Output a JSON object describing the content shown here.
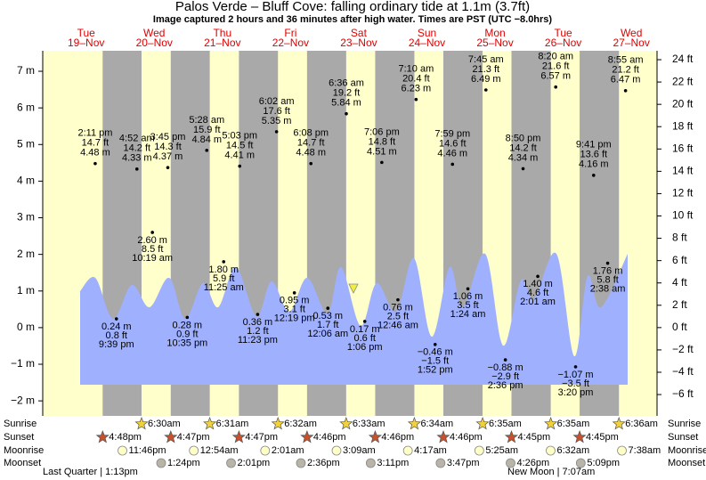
{
  "chart_data": {
    "type": "tide",
    "title": "Palos Verde – Bluff Cove: falling  ordinary tide at 1.1m (3.7ft)",
    "subtitle": "Image captured 2 hours and 36 minutes after high water. Times are PST (UTC −8.0hrs)",
    "ylim": [
      -2.41,
      7.56
    ],
    "yticks": [
      {
        "value": 7,
        "label": "7 m"
      },
      {
        "value": 6,
        "label": "6 m"
      },
      {
        "value": 5,
        "label": "5 m"
      },
      {
        "value": 4,
        "label": "4 m"
      },
      {
        "value": 3,
        "label": "3 m"
      },
      {
        "value": 2,
        "label": "2 m"
      },
      {
        "value": 1,
        "label": "1 m"
      },
      {
        "value": 0,
        "label": "0 m"
      },
      {
        "value": -1,
        "label": "−1 m"
      },
      {
        "value": -2,
        "label": "−2 m"
      }
    ],
    "y2lim": [
      -7.91,
      24.8
    ],
    "y2ticks": [
      {
        "value": 24,
        "label": "24 ft"
      },
      {
        "value": 22,
        "label": "22 ft"
      },
      {
        "value": 20,
        "label": "20 ft"
      },
      {
        "value": 18,
        "label": "18 ft"
      },
      {
        "value": 16,
        "label": "16 ft"
      },
      {
        "value": 14,
        "label": "14 ft"
      },
      {
        "value": 12,
        "label": "12 ft"
      },
      {
        "value": 10,
        "label": "10 ft"
      },
      {
        "value": 8,
        "label": "8 ft"
      },
      {
        "value": 6,
        "label": "6 ft"
      },
      {
        "value": 4,
        "label": "4 ft"
      },
      {
        "value": 2,
        "label": "2 ft"
      },
      {
        "value": 0,
        "label": "0 ft"
      },
      {
        "value": -2,
        "label": "−2 ft"
      },
      {
        "value": -4,
        "label": "−4 ft"
      },
      {
        "value": -6,
        "label": "−6 ft"
      }
    ],
    "rows": [
      "Sunrise",
      "Sunset",
      "Moonrise",
      "Moonset"
    ],
    "moon_phases": [
      "Last Quarter | 1:13pm",
      "New Moon | 7:07am"
    ],
    "days": [
      {
        "weekday": "Tue",
        "date": "19–Nov",
        "sunset": "4:48pm",
        "moonrise": "11:46pm",
        "tides": [
          {
            "time": "2:11 pm",
            "value": 4.48,
            "value_label": "4.48 m",
            "ft_label": "14.7 ft"
          },
          {
            "time": "9:39 pm",
            "value": 0.24,
            "value_label": "0.24 m",
            "ft_label": "0.8 ft"
          }
        ]
      },
      {
        "weekday": "Wed",
        "date": "20–Nov",
        "sunrise": "6:30am",
        "sunset": "4:47pm",
        "moonset": "1:24pm",
        "tides": [
          {
            "time": "4:52 am",
            "value": 4.33,
            "value_label": "4.33 m",
            "ft_label": "14.2 ft"
          },
          {
            "time": "10:19 am",
            "value": 2.6,
            "value_label": "2.60 m",
            "ft_label": "8.5 ft"
          },
          {
            "time": "3:45 pm",
            "value": 4.37,
            "value_label": "4.37 m",
            "ft_label": "14.3 ft"
          },
          {
            "time": "10:35 pm",
            "value": 0.28,
            "value_label": "0.28 m",
            "ft_label": "0.9 ft"
          }
        ]
      },
      {
        "weekday": "Thu",
        "date": "21–Nov",
        "sunrise": "6:31am",
        "sunset": "4:47pm",
        "moonrise": "12:54am",
        "moonset": "2:01pm",
        "tides": [
          {
            "time": "5:28 am",
            "value": 4.84,
            "value_label": "4.84 m",
            "ft_label": "15.9 ft"
          },
          {
            "time": "11:25 am",
            "value": 1.8,
            "value_label": "1.80 m",
            "ft_label": "5.9 ft"
          },
          {
            "time": "5:03 pm",
            "value": 4.41,
            "value_label": "4.41 m",
            "ft_label": "14.5 ft"
          },
          {
            "time": "11:23 pm",
            "value": 0.36,
            "value_label": "0.36 m",
            "ft_label": "1.2 ft"
          }
        ]
      },
      {
        "weekday": "Fri",
        "date": "22–Nov",
        "sunrise": "6:32am",
        "sunset": "4:46pm",
        "moonrise": "2:01am",
        "moonset": "2:36pm",
        "tides": [
          {
            "time": "6:02 am",
            "value": 5.35,
            "value_label": "5.35 m",
            "ft_label": "17.6 ft"
          },
          {
            "time": "12:19 pm",
            "value": 0.95,
            "value_label": "0.95 m",
            "ft_label": "3.1 ft"
          },
          {
            "time": "6:08 pm",
            "value": 4.48,
            "value_label": "4.48 m",
            "ft_label": "14.7 ft"
          }
        ]
      },
      {
        "weekday": "Sat",
        "date": "23–Nov",
        "sunrise": "6:33am",
        "sunset": "4:46pm",
        "moonrise": "3:09am",
        "moonset": "3:11pm",
        "tides": [
          {
            "time": "12:06 am",
            "value": 0.53,
            "value_label": "0.53 m",
            "ft_label": "1.7 ft"
          },
          {
            "time": "6:36 am",
            "value": 5.84,
            "value_label": "5.84 m",
            "ft_label": "19.2 ft"
          },
          {
            "time": "1:06 pm",
            "value": 0.17,
            "value_label": "0.17 m",
            "ft_label": "0.6 ft"
          },
          {
            "time": "7:06 pm",
            "value": 4.51,
            "value_label": "4.51 m",
            "ft_label": "14.8 ft"
          }
        ]
      },
      {
        "weekday": "Sun",
        "date": "24–Nov",
        "sunrise": "6:34am",
        "sunset": "4:46pm",
        "moonrise": "4:17am",
        "moonset": "3:47pm",
        "tides": [
          {
            "time": "12:46 am",
            "value": 0.76,
            "value_label": "0.76 m",
            "ft_label": "2.5 ft"
          },
          {
            "time": "7:10 am",
            "value": 6.23,
            "value_label": "6.23 m",
            "ft_label": "20.4 ft"
          },
          {
            "time": "1:52 pm",
            "value": -0.46,
            "value_label": "−0.46 m",
            "ft_label": "−1.5 ft"
          },
          {
            "time": "7:59 pm",
            "value": 4.46,
            "value_label": "4.46 m",
            "ft_label": "14.6 ft"
          }
        ]
      },
      {
        "weekday": "Mon",
        "date": "25–Nov",
        "sunrise": "6:35am",
        "sunset": "4:45pm",
        "moonrise": "5:25am",
        "moonset": "4:26pm",
        "tides": [
          {
            "time": "1:24 am",
            "value": 1.06,
            "value_label": "1.06 m",
            "ft_label": "3.5 ft"
          },
          {
            "time": "7:45 am",
            "value": 6.49,
            "value_label": "6.49 m",
            "ft_label": "21.3 ft"
          },
          {
            "time": "2:36 pm",
            "value": -0.88,
            "value_label": "−0.88 m",
            "ft_label": "−2.9 ft"
          },
          {
            "time": "8:50 pm",
            "value": 4.34,
            "value_label": "4.34 m",
            "ft_label": "14.2 ft"
          }
        ]
      },
      {
        "weekday": "Tue",
        "date": "26–Nov",
        "sunrise": "6:35am",
        "sunset": "4:45pm",
        "moonrise": "6:32am",
        "moonset": "5:09pm",
        "tides": [
          {
            "time": "2:01 am",
            "value": 1.4,
            "value_label": "1.40 m",
            "ft_label": "4.6 ft"
          },
          {
            "time": "8:20 am",
            "value": 6.57,
            "value_label": "6.57 m",
            "ft_label": "21.6 ft"
          },
          {
            "time": "3:20 pm",
            "value": -1.07,
            "value_label": "−1.07 m",
            "ft_label": "−3.5 ft"
          },
          {
            "time": "9:41 pm",
            "value": 4.16,
            "value_label": "4.16 m",
            "ft_label": "13.6 ft"
          }
        ]
      },
      {
        "weekday": "Wed",
        "date": "27–Nov",
        "sunrise": "6:36am",
        "moonrise": "7:38am",
        "tides": [
          {
            "time": "2:38 am",
            "value": 1.76,
            "value_label": "1.76 m",
            "ft_label": "5.8 ft"
          },
          {
            "time": "8:55 am",
            "value": 6.47,
            "value_label": "6.47 m",
            "ft_label": "21.2 ft"
          }
        ]
      }
    ]
  }
}
